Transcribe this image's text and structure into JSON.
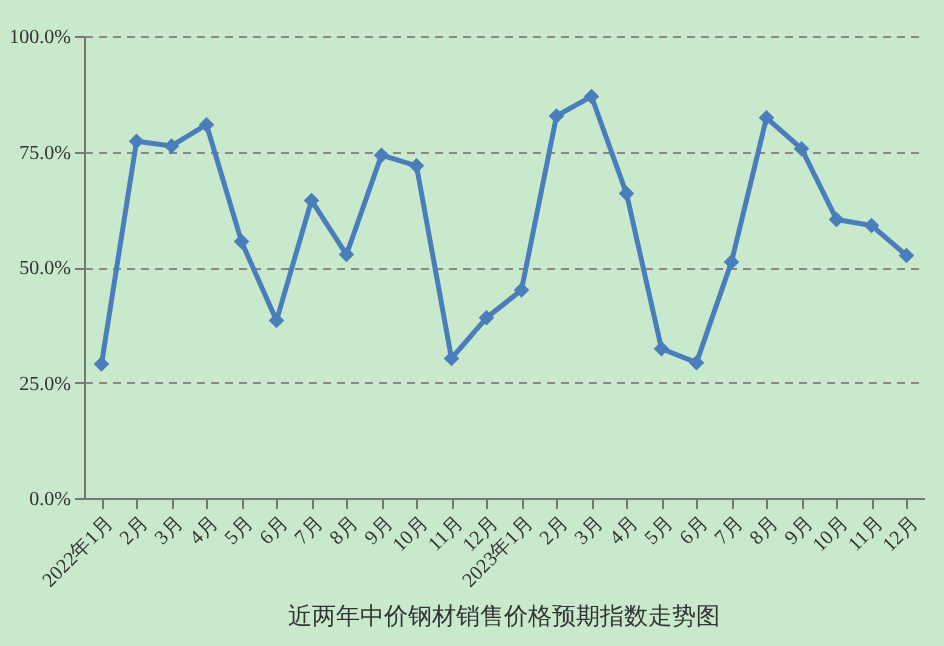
{
  "chart_data": {
    "type": "line",
    "title": "近两年中价钢材销售价格预期指数走势图",
    "categories": [
      "2022年1月",
      "2月",
      "3月",
      "4月",
      "5月",
      "6月",
      "7月",
      "8月",
      "9月",
      "10月",
      "11月",
      "12月",
      "2023年1月",
      "2月",
      "3月",
      "4月",
      "5月",
      "6月",
      "7月",
      "8月",
      "9月",
      "10月",
      "11月",
      "12月"
    ],
    "series": [
      {
        "color": "#4a7ebb",
        "values": [
          29,
          77.2,
          76.2,
          80.8,
          55.5,
          38.4,
          64.4,
          52.7,
          74.2,
          71.9,
          30.2,
          39,
          45,
          82.7,
          86.9,
          65.9,
          32.3,
          29.3,
          51.1,
          82.3,
          75.6,
          60.3,
          59,
          52.5
        ]
      }
    ],
    "ylim": [
      0,
      100
    ],
    "yticks": [
      {
        "value": 0,
        "label": "0.0%"
      },
      {
        "value": 25,
        "label": "25.0%"
      },
      {
        "value": 50,
        "label": "50.0%"
      },
      {
        "value": 75,
        "label": "75.0%"
      },
      {
        "value": 100,
        "label": "100.0%"
      }
    ],
    "grid": "y",
    "marker": "diamond",
    "line_style": "solid"
  }
}
